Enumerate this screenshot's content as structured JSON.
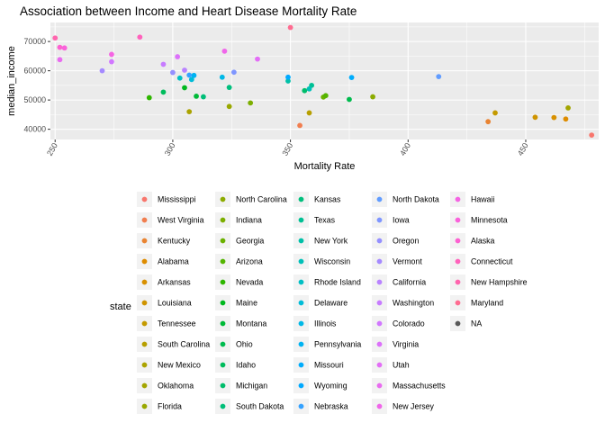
{
  "chart_data": {
    "type": "scatter",
    "title": "Association between Income and Heart Disease Mortality Rate",
    "xlabel": "Mortality Rate",
    "ylabel": "median_income",
    "xlim": [
      248,
      481
    ],
    "ylim": [
      36500,
      76500
    ],
    "x_ticks": [
      250,
      300,
      350,
      400,
      450
    ],
    "x_tick_labels": [
      "250",
      "300",
      "350",
      "400",
      "450"
    ],
    "y_ticks": [
      40000,
      50000,
      60000,
      70000
    ],
    "y_tick_labels": [
      "40000",
      "50000",
      "60000",
      "70000"
    ],
    "grid": true,
    "legend_title": "state",
    "legend_position": "bottom",
    "series": [
      {
        "name": "Mississippi",
        "color": "#F8766D",
        "x": 478,
        "y": 38000
      },
      {
        "name": "West Virginia",
        "color": "#F17E4F",
        "x": 354,
        "y": 41300
      },
      {
        "name": "Kentucky",
        "color": "#E98432",
        "x": 434,
        "y": 42600
      },
      {
        "name": "Alabama",
        "color": "#DE8C00",
        "x": 467,
        "y": 43500
      },
      {
        "name": "Arkansas",
        "color": "#D89000",
        "x": 462,
        "y": 44000
      },
      {
        "name": "Louisiana",
        "color": "#CF9400",
        "x": 454,
        "y": 44100
      },
      {
        "name": "Tennessee",
        "color": "#C49A00",
        "x": 437,
        "y": 45600
      },
      {
        "name": "South Carolina",
        "color": "#B79F00",
        "x": 358,
        "y": 45600
      },
      {
        "name": "New Mexico",
        "color": "#ABA300",
        "x": 307,
        "y": 46000
      },
      {
        "name": "Oklahoma",
        "color": "#A3A500",
        "x": 468,
        "y": 47300
      },
      {
        "name": "Florida",
        "color": "#99A800",
        "x": 324,
        "y": 47800
      },
      {
        "name": "North Carolina",
        "color": "#8CAB00",
        "x": 385,
        "y": 51100
      },
      {
        "name": "Indiana",
        "color": "#7CAE00",
        "x": 333,
        "y": 49000
      },
      {
        "name": "Georgia",
        "color": "#6BB100",
        "x": 364,
        "y": 51000
      },
      {
        "name": "Arizona",
        "color": "#53B400",
        "x": 365,
        "y": 51500
      },
      {
        "name": "Nevada",
        "color": "#2EB600",
        "x": 290,
        "y": 50800
      },
      {
        "name": "Maine",
        "color": "#00B81F",
        "x": 305,
        "y": 54200
      },
      {
        "name": "Montana",
        "color": "#00BA38",
        "x": 310,
        "y": 51300
      },
      {
        "name": "Ohio",
        "color": "#00BB4E",
        "x": 375,
        "y": 50200
      },
      {
        "name": "Idaho",
        "color": "#00BC5C",
        "x": 296,
        "y": 52700
      },
      {
        "name": "Michigan",
        "color": "#00BD6B",
        "x": 356,
        "y": 53200
      },
      {
        "name": "South Dakota",
        "color": "#00BE78",
        "x": 313,
        "y": 51100
      },
      {
        "name": "Kansas",
        "color": "#00BF7D",
        "x": 324,
        "y": 54300
      },
      {
        "name": "Texas",
        "color": "#00C094",
        "x": 359,
        "y": 55000
      },
      {
        "name": "New York",
        "color": "#00C0A8",
        "x": 349,
        "y": 56500
      },
      {
        "name": "Wisconsin",
        "color": "#00C0B8",
        "x": 358,
        "y": 53800
      },
      {
        "name": "Rhode Island",
        "color": "#00BFC4",
        "x": 303,
        "y": 57500
      },
      {
        "name": "Delaware",
        "color": "#00BCD8",
        "x": 308,
        "y": 57000
      },
      {
        "name": "Illinois",
        "color": "#00B8E7",
        "x": 321,
        "y": 57800
      },
      {
        "name": "Pennsylvania",
        "color": "#00B3F2",
        "x": 309,
        "y": 58400
      },
      {
        "name": "Missouri",
        "color": "#00ACFC",
        "x": 376,
        "y": 57700
      },
      {
        "name": "Wyoming",
        "color": "#00A9FF",
        "x": 349,
        "y": 57800
      },
      {
        "name": "Nebraska",
        "color": "#35A2FF",
        "x": 307,
        "y": 58500
      },
      {
        "name": "North Dakota",
        "color": "#619CFF",
        "x": 413,
        "y": 58000
      },
      {
        "name": "Iowa",
        "color": "#7F96FF",
        "x": 326,
        "y": 59500
      },
      {
        "name": "Oregon",
        "color": "#9590FF",
        "x": 300,
        "y": 59400
      },
      {
        "name": "Vermont",
        "color": "#A58AFF",
        "x": 270,
        "y": 60000
      },
      {
        "name": "California",
        "color": "#B983FF",
        "x": 305,
        "y": 60200
      },
      {
        "name": "Washington",
        "color": "#C77CFF",
        "x": 296,
        "y": 62200
      },
      {
        "name": "Colorado",
        "color": "#D177FF",
        "x": 274,
        "y": 63100
      },
      {
        "name": "Virginia",
        "color": "#DC71FA",
        "x": 302,
        "y": 64800
      },
      {
        "name": "Utah",
        "color": "#E36EF6",
        "x": 336,
        "y": 64000
      },
      {
        "name": "Massachusetts",
        "color": "#E96CF0",
        "x": 252,
        "y": 63800
      },
      {
        "name": "New Jersey",
        "color": "#F066EA",
        "x": 322,
        "y": 66700
      },
      {
        "name": "Hawaii",
        "color": "#F564E3",
        "x": 274,
        "y": 65600
      },
      {
        "name": "Minnesota",
        "color": "#FA62DB",
        "x": 254,
        "y": 67800
      },
      {
        "name": "Alaska",
        "color": "#FD61D1",
        "x": 252,
        "y": 68000
      },
      {
        "name": "Connecticut",
        "color": "#FF62BC",
        "x": 286,
        "y": 71500
      },
      {
        "name": "New Hampshire",
        "color": "#FF65AE",
        "x": 250,
        "y": 71200
      },
      {
        "name": "Maryland",
        "color": "#FF6C91",
        "x": 350,
        "y": 74800
      },
      {
        "name": "NA",
        "color": "#595959"
      }
    ]
  }
}
